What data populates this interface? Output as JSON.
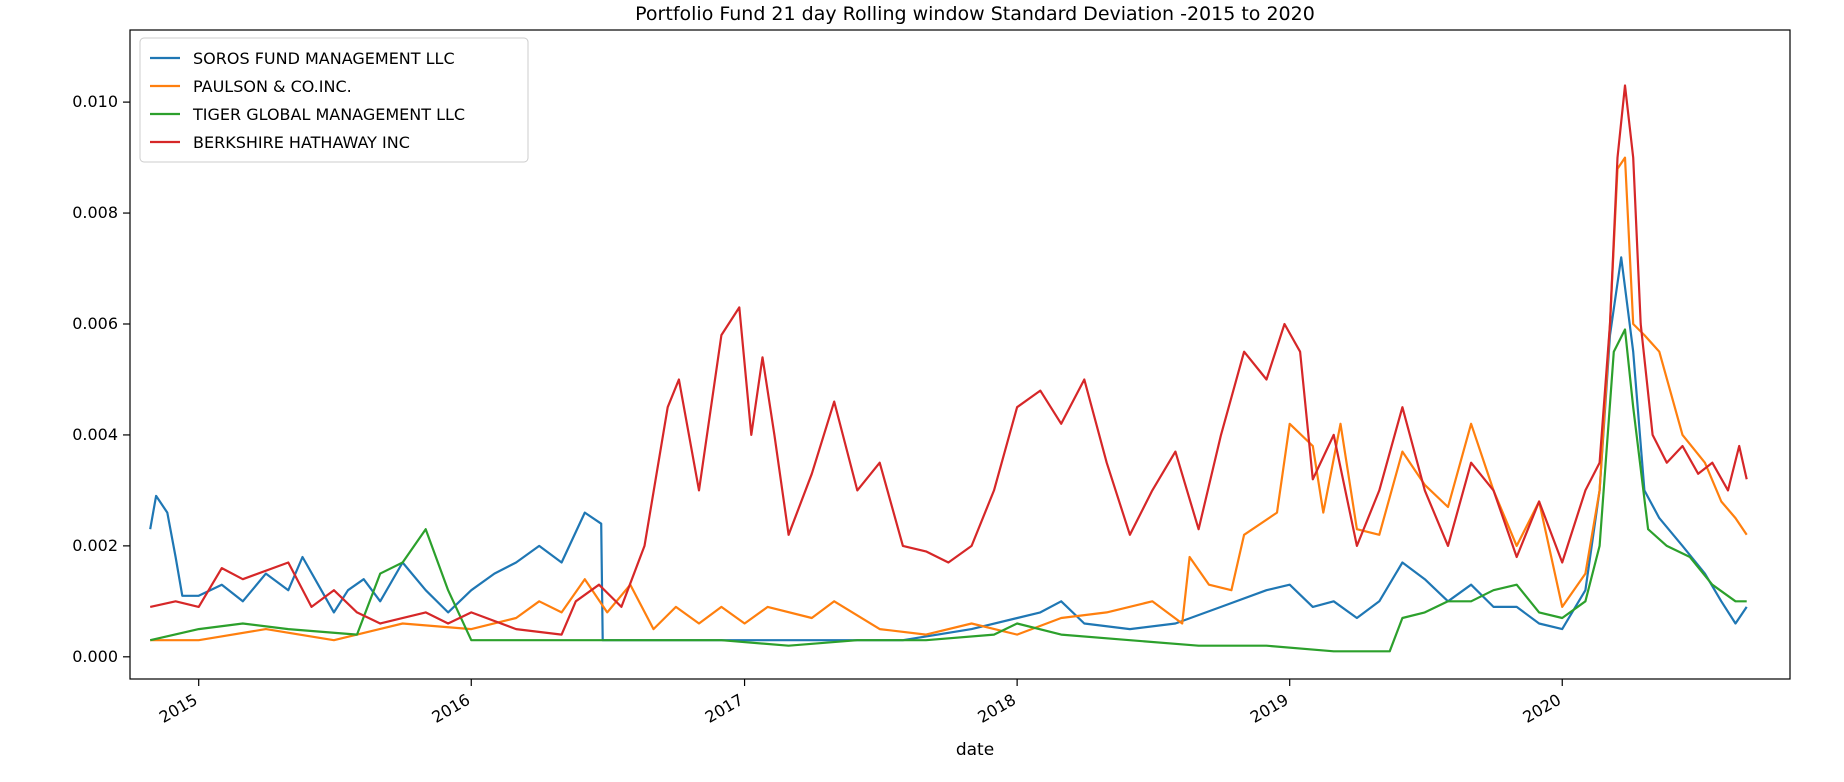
{
  "chart_data": {
    "type": "line",
    "title": "Portfolio Fund 21 day Rolling window Standard Deviation -2015 to 2020",
    "xlabel": "date",
    "ylabel": "",
    "xlim": [
      "2014-10-01",
      "2020-11-01"
    ],
    "ylim": [
      -0.0004,
      0.0113
    ],
    "x_ticks": [
      "2015",
      "2016",
      "2017",
      "2018",
      "2019",
      "2020"
    ],
    "y_ticks": [
      "0.000",
      "0.002",
      "0.004",
      "0.006",
      "0.008",
      "0.010"
    ],
    "grid": false,
    "legend_position": "top-left",
    "series": [
      {
        "name": "SOROS FUND MANAGEMENT LLC",
        "color": "#1f77b4",
        "points": [
          [
            "2014-10-28",
            0.0023
          ],
          [
            "2014-11-05",
            0.0029
          ],
          [
            "2014-11-20",
            0.0026
          ],
          [
            "2014-12-01",
            0.0018
          ],
          [
            "2014-12-10",
            0.0011
          ],
          [
            "2015-01-01",
            0.0011
          ],
          [
            "2015-02-01",
            0.0013
          ],
          [
            "2015-03-01",
            0.001
          ],
          [
            "2015-04-01",
            0.0015
          ],
          [
            "2015-05-01",
            0.0012
          ],
          [
            "2015-05-20",
            0.0018
          ],
          [
            "2015-06-10",
            0.0013
          ],
          [
            "2015-07-01",
            0.0008
          ],
          [
            "2015-07-20",
            0.0012
          ],
          [
            "2015-08-10",
            0.0014
          ],
          [
            "2015-09-01",
            0.001
          ],
          [
            "2015-10-01",
            0.0017
          ],
          [
            "2015-11-01",
            0.0012
          ],
          [
            "2015-12-01",
            0.0008
          ],
          [
            "2016-01-01",
            0.0012
          ],
          [
            "2016-02-01",
            0.0015
          ],
          [
            "2016-03-01",
            0.0017
          ],
          [
            "2016-04-01",
            0.002
          ],
          [
            "2016-05-01",
            0.0017
          ],
          [
            "2016-06-01",
            0.0026
          ],
          [
            "2016-06-23",
            0.0024
          ],
          [
            "2016-06-25",
            0.0003
          ],
          [
            "2016-08-01",
            0.0003
          ],
          [
            "2016-10-01",
            0.0003
          ],
          [
            "2017-01-01",
            0.0003
          ],
          [
            "2017-03-01",
            0.0003
          ],
          [
            "2017-05-01",
            0.0003
          ],
          [
            "2017-08-01",
            0.0003
          ],
          [
            "2017-11-01",
            0.0005
          ],
          [
            "2018-02-01",
            0.0008
          ],
          [
            "2018-03-01",
            0.001
          ],
          [
            "2018-04-01",
            0.0006
          ],
          [
            "2018-06-01",
            0.0005
          ],
          [
            "2018-08-01",
            0.0006
          ],
          [
            "2018-10-01",
            0.0009
          ],
          [
            "2018-12-01",
            0.0012
          ],
          [
            "2019-01-01",
            0.0013
          ],
          [
            "2019-02-01",
            0.0009
          ],
          [
            "2019-03-01",
            0.001
          ],
          [
            "2019-04-01",
            0.0007
          ],
          [
            "2019-05-01",
            0.001
          ],
          [
            "2019-06-01",
            0.0017
          ],
          [
            "2019-07-01",
            0.0014
          ],
          [
            "2019-08-01",
            0.001
          ],
          [
            "2019-09-01",
            0.0013
          ],
          [
            "2019-10-01",
            0.0009
          ],
          [
            "2019-11-01",
            0.0009
          ],
          [
            "2019-12-01",
            0.0006
          ],
          [
            "2020-01-01",
            0.0005
          ],
          [
            "2020-02-01",
            0.0012
          ],
          [
            "2020-02-20",
            0.003
          ],
          [
            "2020-03-05",
            0.0058
          ],
          [
            "2020-03-20",
            0.0072
          ],
          [
            "2020-04-05",
            0.0055
          ],
          [
            "2020-04-20",
            0.003
          ],
          [
            "2020-05-10",
            0.0025
          ],
          [
            "2020-06-10",
            0.002
          ],
          [
            "2020-07-10",
            0.0015
          ],
          [
            "2020-08-01",
            0.001
          ],
          [
            "2020-08-20",
            0.0006
          ],
          [
            "2020-09-04",
            0.0009
          ]
        ]
      },
      {
        "name": "PAULSON & CO.INC.",
        "color": "#ff7f0e",
        "points": [
          [
            "2014-10-28",
            0.0003
          ],
          [
            "2015-01-01",
            0.0003
          ],
          [
            "2015-04-01",
            0.0005
          ],
          [
            "2015-07-01",
            0.0003
          ],
          [
            "2015-10-01",
            0.0006
          ],
          [
            "2016-01-01",
            0.0005
          ],
          [
            "2016-03-01",
            0.0007
          ],
          [
            "2016-04-01",
            0.001
          ],
          [
            "2016-05-01",
            0.0008
          ],
          [
            "2016-06-01",
            0.0014
          ],
          [
            "2016-07-01",
            0.0008
          ],
          [
            "2016-08-01",
            0.0013
          ],
          [
            "2016-09-01",
            0.0005
          ],
          [
            "2016-10-01",
            0.0009
          ],
          [
            "2016-11-01",
            0.0006
          ],
          [
            "2016-12-01",
            0.0009
          ],
          [
            "2017-01-01",
            0.0006
          ],
          [
            "2017-02-01",
            0.0009
          ],
          [
            "2017-04-01",
            0.0007
          ],
          [
            "2017-05-01",
            0.001
          ],
          [
            "2017-07-01",
            0.0005
          ],
          [
            "2017-09-01",
            0.0004
          ],
          [
            "2017-11-01",
            0.0006
          ],
          [
            "2018-01-01",
            0.0004
          ],
          [
            "2018-03-01",
            0.0007
          ],
          [
            "2018-05-01",
            0.0008
          ],
          [
            "2018-07-01",
            0.001
          ],
          [
            "2018-08-10",
            0.0006
          ],
          [
            "2018-08-20",
            0.0018
          ],
          [
            "2018-09-15",
            0.0013
          ],
          [
            "2018-10-15",
            0.0012
          ],
          [
            "2018-11-01",
            0.0022
          ],
          [
            "2018-12-15",
            0.0026
          ],
          [
            "2019-01-01",
            0.0042
          ],
          [
            "2019-02-01",
            0.0038
          ],
          [
            "2019-02-15",
            0.0026
          ],
          [
            "2019-03-10",
            0.0042
          ],
          [
            "2019-04-01",
            0.0023
          ],
          [
            "2019-05-01",
            0.0022
          ],
          [
            "2019-06-01",
            0.0037
          ],
          [
            "2019-07-01",
            0.0031
          ],
          [
            "2019-08-01",
            0.0027
          ],
          [
            "2019-09-01",
            0.0042
          ],
          [
            "2019-10-01",
            0.003
          ],
          [
            "2019-11-01",
            0.002
          ],
          [
            "2019-12-01",
            0.0028
          ],
          [
            "2020-01-01",
            0.0009
          ],
          [
            "2020-02-01",
            0.0015
          ],
          [
            "2020-02-20",
            0.003
          ],
          [
            "2020-03-05",
            0.006
          ],
          [
            "2020-03-15",
            0.0088
          ],
          [
            "2020-03-25",
            0.009
          ],
          [
            "2020-04-05",
            0.006
          ],
          [
            "2020-04-20",
            0.0058
          ],
          [
            "2020-05-10",
            0.0055
          ],
          [
            "2020-06-10",
            0.004
          ],
          [
            "2020-07-10",
            0.0035
          ],
          [
            "2020-08-01",
            0.0028
          ],
          [
            "2020-08-20",
            0.0025
          ],
          [
            "2020-09-04",
            0.0022
          ]
        ]
      },
      {
        "name": "TIGER GLOBAL MANAGEMENT LLC",
        "color": "#2ca02c",
        "points": [
          [
            "2014-10-28",
            0.0003
          ],
          [
            "2015-01-01",
            0.0005
          ],
          [
            "2015-03-01",
            0.0006
          ],
          [
            "2015-05-01",
            0.0005
          ],
          [
            "2015-08-01",
            0.0004
          ],
          [
            "2015-09-01",
            0.0015
          ],
          [
            "2015-10-01",
            0.0017
          ],
          [
            "2015-11-01",
            0.0023
          ],
          [
            "2015-12-01",
            0.0012
          ],
          [
            "2016-01-01",
            0.0003
          ],
          [
            "2016-03-01",
            0.0003
          ],
          [
            "2016-06-01",
            0.0003
          ],
          [
            "2016-09-01",
            0.0003
          ],
          [
            "2016-12-01",
            0.0003
          ],
          [
            "2017-03-01",
            0.0002
          ],
          [
            "2017-06-01",
            0.0003
          ],
          [
            "2017-09-01",
            0.0003
          ],
          [
            "2017-12-01",
            0.0004
          ],
          [
            "2018-01-01",
            0.0006
          ],
          [
            "2018-03-01",
            0.0004
          ],
          [
            "2018-06-01",
            0.0003
          ],
          [
            "2018-09-01",
            0.0002
          ],
          [
            "2018-12-01",
            0.0002
          ],
          [
            "2019-03-01",
            0.0001
          ],
          [
            "2019-05-15",
            0.0001
          ],
          [
            "2019-06-01",
            0.0007
          ],
          [
            "2019-07-01",
            0.0008
          ],
          [
            "2019-08-01",
            0.001
          ],
          [
            "2019-09-01",
            0.001
          ],
          [
            "2019-10-01",
            0.0012
          ],
          [
            "2019-11-01",
            0.0013
          ],
          [
            "2019-12-01",
            0.0008
          ],
          [
            "2020-01-01",
            0.0007
          ],
          [
            "2020-02-01",
            0.001
          ],
          [
            "2020-02-20",
            0.002
          ],
          [
            "2020-03-10",
            0.0055
          ],
          [
            "2020-03-25",
            0.0059
          ],
          [
            "2020-04-05",
            0.0045
          ],
          [
            "2020-04-25",
            0.0023
          ],
          [
            "2020-05-20",
            0.002
          ],
          [
            "2020-06-20",
            0.0018
          ],
          [
            "2020-07-20",
            0.0013
          ],
          [
            "2020-08-20",
            0.001
          ],
          [
            "2020-09-04",
            0.001
          ]
        ]
      },
      {
        "name": "BERKSHIRE HATHAWAY INC",
        "color": "#d62728",
        "points": [
          [
            "2014-10-28",
            0.0009
          ],
          [
            "2014-12-01",
            0.001
          ],
          [
            "2015-01-01",
            0.0009
          ],
          [
            "2015-02-01",
            0.0016
          ],
          [
            "2015-03-01",
            0.0014
          ],
          [
            "2015-05-01",
            0.0017
          ],
          [
            "2015-06-01",
            0.0009
          ],
          [
            "2015-07-01",
            0.0012
          ],
          [
            "2015-08-01",
            0.0008
          ],
          [
            "2015-09-01",
            0.0006
          ],
          [
            "2015-11-01",
            0.0008
          ],
          [
            "2015-12-01",
            0.0006
          ],
          [
            "2016-01-01",
            0.0008
          ],
          [
            "2016-03-01",
            0.0005
          ],
          [
            "2016-05-01",
            0.0004
          ],
          [
            "2016-05-20",
            0.001
          ],
          [
            "2016-06-20",
            0.0013
          ],
          [
            "2016-07-20",
            0.0009
          ],
          [
            "2016-08-20",
            0.002
          ],
          [
            "2016-09-20",
            0.0045
          ],
          [
            "2016-10-05",
            0.005
          ],
          [
            "2016-11-01",
            0.003
          ],
          [
            "2016-12-01",
            0.0058
          ],
          [
            "2016-12-25",
            0.0063
          ],
          [
            "2017-01-10",
            0.004
          ],
          [
            "2017-01-25",
            0.0054
          ],
          [
            "2017-02-10",
            0.004
          ],
          [
            "2017-03-01",
            0.0022
          ],
          [
            "2017-04-01",
            0.0033
          ],
          [
            "2017-05-01",
            0.0046
          ],
          [
            "2017-06-01",
            0.003
          ],
          [
            "2017-07-01",
            0.0035
          ],
          [
            "2017-08-01",
            0.002
          ],
          [
            "2017-09-01",
            0.0019
          ],
          [
            "2017-10-01",
            0.0017
          ],
          [
            "2017-11-01",
            0.002
          ],
          [
            "2017-12-01",
            0.003
          ],
          [
            "2018-01-01",
            0.0045
          ],
          [
            "2018-02-01",
            0.0048
          ],
          [
            "2018-03-01",
            0.0042
          ],
          [
            "2018-04-01",
            0.005
          ],
          [
            "2018-05-01",
            0.0035
          ],
          [
            "2018-06-01",
            0.0022
          ],
          [
            "2018-07-01",
            0.003
          ],
          [
            "2018-08-01",
            0.0037
          ],
          [
            "2018-09-01",
            0.0023
          ],
          [
            "2018-10-01",
            0.004
          ],
          [
            "2018-11-01",
            0.0055
          ],
          [
            "2018-12-01",
            0.005
          ],
          [
            "2018-12-25",
            0.006
          ],
          [
            "2019-01-15",
            0.0055
          ],
          [
            "2019-02-01",
            0.0032
          ],
          [
            "2019-03-01",
            0.004
          ],
          [
            "2019-04-01",
            0.002
          ],
          [
            "2019-05-01",
            0.003
          ],
          [
            "2019-06-01",
            0.0045
          ],
          [
            "2019-07-01",
            0.003
          ],
          [
            "2019-08-01",
            0.002
          ],
          [
            "2019-09-01",
            0.0035
          ],
          [
            "2019-10-01",
            0.003
          ],
          [
            "2019-11-01",
            0.0018
          ],
          [
            "2019-12-01",
            0.0028
          ],
          [
            "2020-01-01",
            0.0017
          ],
          [
            "2020-02-01",
            0.003
          ],
          [
            "2020-02-20",
            0.0035
          ],
          [
            "2020-03-05",
            0.006
          ],
          [
            "2020-03-15",
            0.009
          ],
          [
            "2020-03-25",
            0.0103
          ],
          [
            "2020-04-05",
            0.009
          ],
          [
            "2020-04-15",
            0.006
          ],
          [
            "2020-05-01",
            0.004
          ],
          [
            "2020-05-20",
            0.0035
          ],
          [
            "2020-06-10",
            0.0038
          ],
          [
            "2020-07-01",
            0.0033
          ],
          [
            "2020-07-20",
            0.0035
          ],
          [
            "2020-08-10",
            0.003
          ],
          [
            "2020-08-25",
            0.0038
          ],
          [
            "2020-09-04",
            0.0032
          ]
        ]
      }
    ]
  }
}
